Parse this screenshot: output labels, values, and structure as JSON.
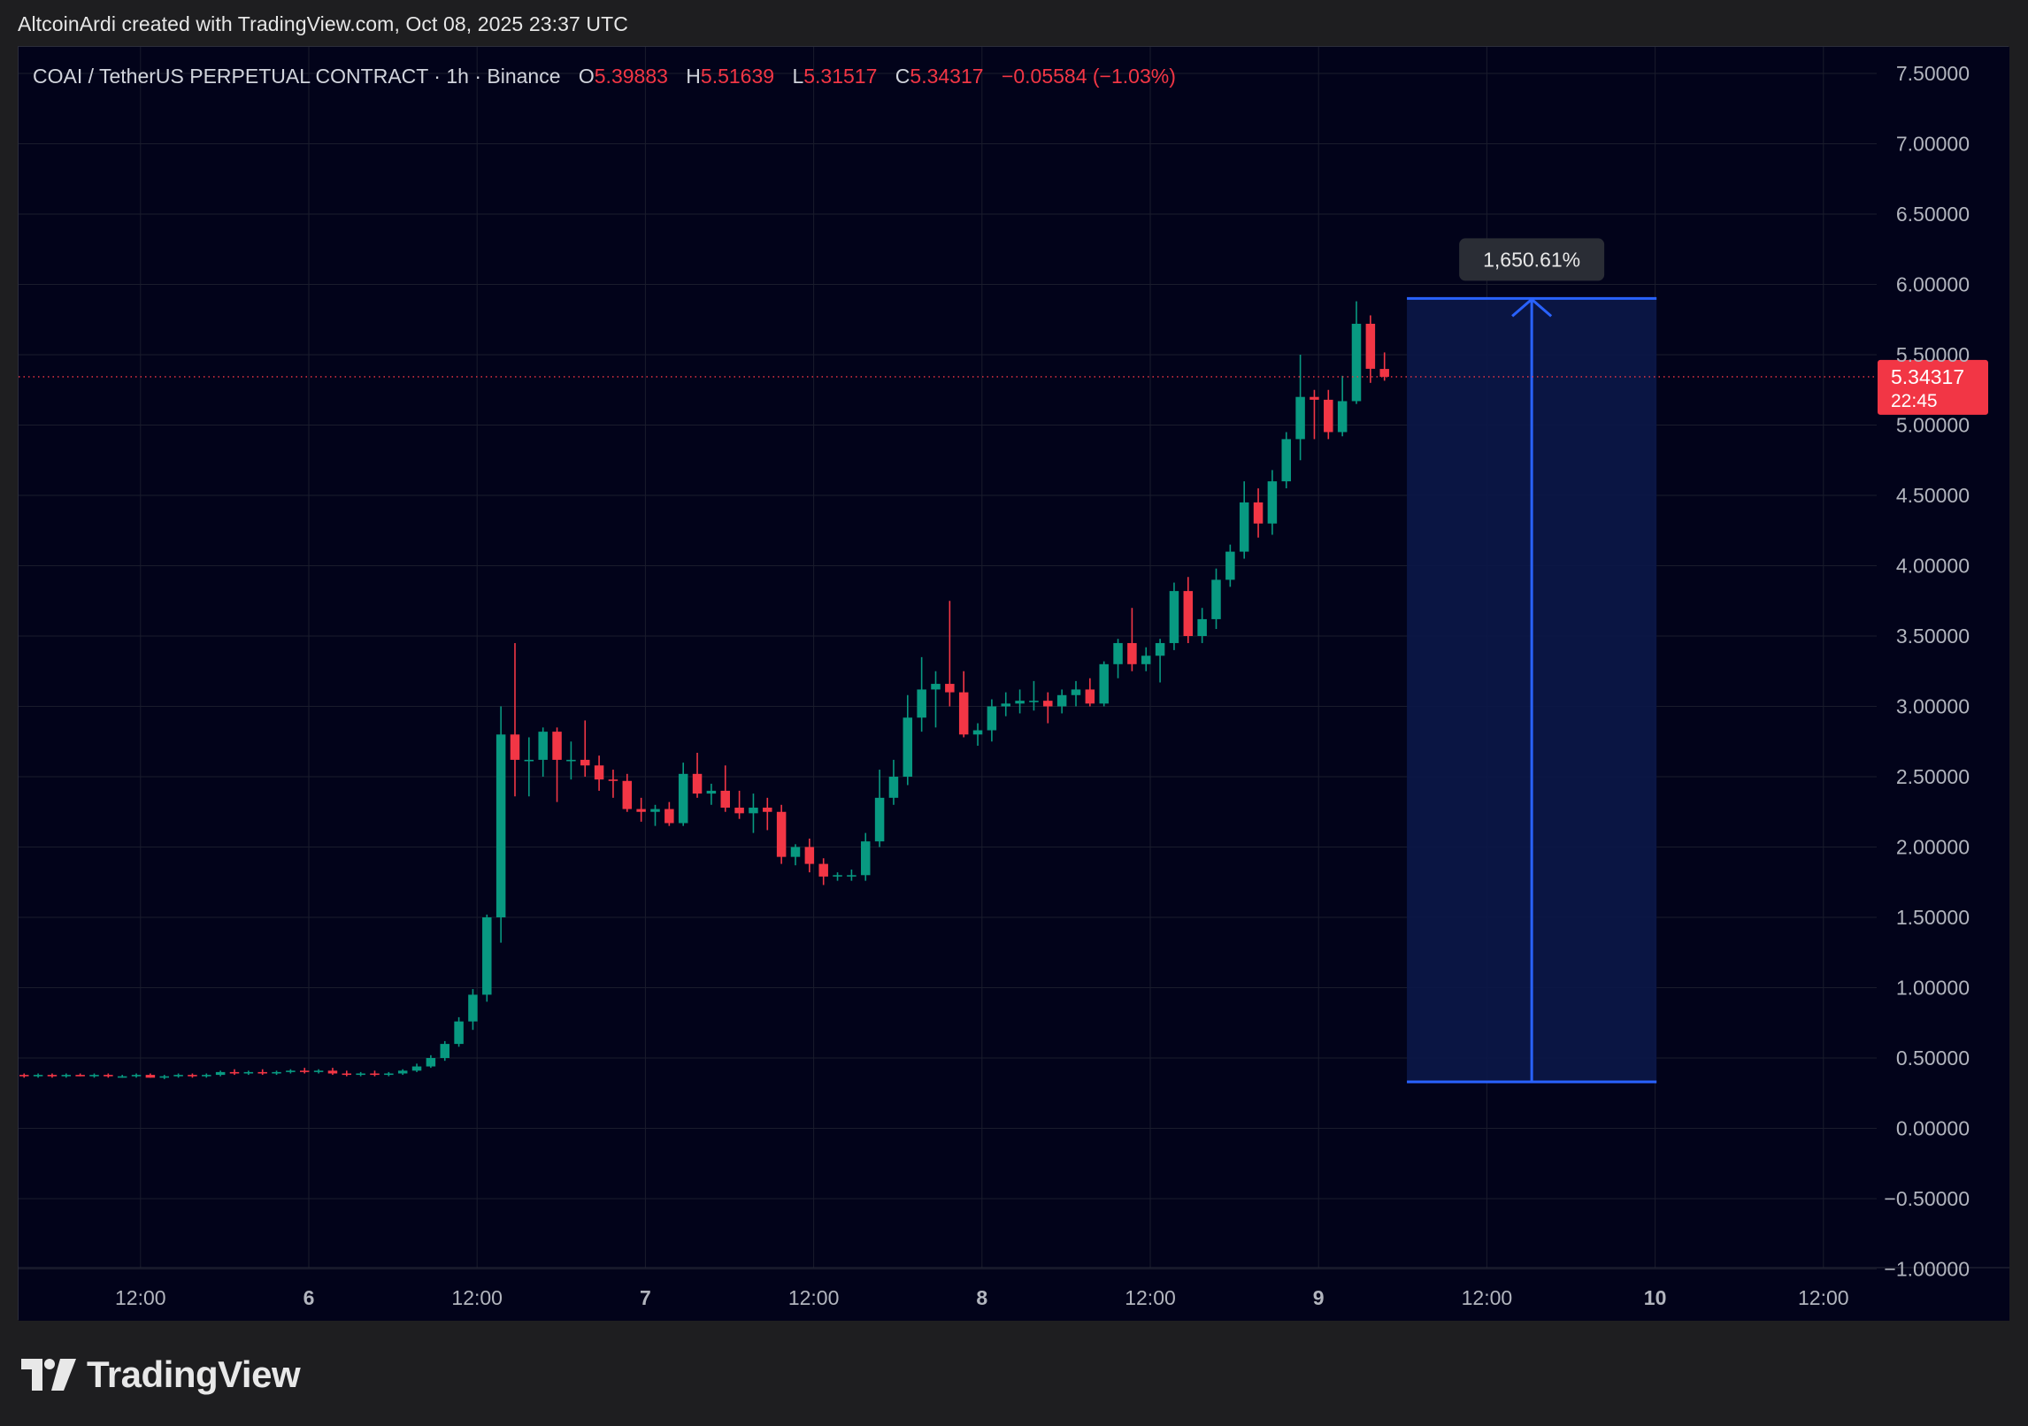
{
  "header": {
    "credit": "AltcoinArdi created with TradingView.com, Oct 08, 2025 23:37 UTC"
  },
  "legend": {
    "symbol": "COAI / TetherUS PERPETUAL CONTRACT · 1h · Binance",
    "o_label": "O",
    "o_value": "5.39883",
    "h_label": "H",
    "h_value": "5.51639",
    "l_label": "L",
    "l_value": "5.31517",
    "c_label": "C",
    "c_value": "5.34317",
    "change": "−0.05584 (−1.03%)"
  },
  "brand": {
    "name": "TradingView",
    "logo": "tradingview-logo-icon"
  },
  "colors": {
    "up": "#089981",
    "down": "#f23645",
    "background": "#02031a",
    "grid": "#1a1c2c",
    "axis_text": "#b2b5be",
    "measure": "#2962ff",
    "measure_fill": "#0b1748",
    "price_tag": "#f23645"
  },
  "chart_data": {
    "type": "candlestick",
    "interval": "1h",
    "yaxis_labels": [
      "7.50000",
      "7.00000",
      "6.50000",
      "6.00000",
      "5.50000",
      "5.00000",
      "4.50000",
      "4.00000",
      "3.50000",
      "3.00000",
      "2.50000",
      "2.00000",
      "1.50000",
      "1.00000",
      "0.50000",
      "0.00000",
      "−0.50000",
      "−1.00000"
    ],
    "ylim": [
      -1.0,
      7.7
    ],
    "xaxis_labels": [
      {
        "label": "12:00",
        "x": -12,
        "bold": false
      },
      {
        "label": "6",
        "x": 0,
        "bold": true
      },
      {
        "label": "12:00",
        "x": 12,
        "bold": false
      },
      {
        "label": "7",
        "x": 24,
        "bold": true
      },
      {
        "label": "12:00",
        "x": 36,
        "bold": false
      },
      {
        "label": "8",
        "x": 48,
        "bold": true
      },
      {
        "label": "12:00",
        "x": 60,
        "bold": false
      },
      {
        "label": "9",
        "x": 72,
        "bold": true
      },
      {
        "label": "12:00",
        "x": 84,
        "bold": false
      },
      {
        "label": "10",
        "x": 96,
        "bold": true
      },
      {
        "label": "12:00",
        "x": 108,
        "bold": false
      }
    ],
    "xlim_hours": [
      -20.6,
      113
    ],
    "start_hour": -20.3,
    "candles": [
      [
        0.38,
        0.39,
        0.36,
        0.37
      ],
      [
        0.37,
        0.39,
        0.36,
        0.38
      ],
      [
        0.38,
        0.39,
        0.36,
        0.37
      ],
      [
        0.37,
        0.39,
        0.36,
        0.38
      ],
      [
        0.38,
        0.39,
        0.37,
        0.37
      ],
      [
        0.37,
        0.39,
        0.36,
        0.38
      ],
      [
        0.38,
        0.39,
        0.36,
        0.37
      ],
      [
        0.37,
        0.38,
        0.36,
        0.37
      ],
      [
        0.37,
        0.39,
        0.36,
        0.38
      ],
      [
        0.38,
        0.39,
        0.36,
        0.36
      ],
      [
        0.36,
        0.38,
        0.35,
        0.37
      ],
      [
        0.37,
        0.39,
        0.36,
        0.38
      ],
      [
        0.38,
        0.39,
        0.36,
        0.37
      ],
      [
        0.37,
        0.39,
        0.36,
        0.38
      ],
      [
        0.38,
        0.41,
        0.37,
        0.4
      ],
      [
        0.4,
        0.42,
        0.38,
        0.39
      ],
      [
        0.39,
        0.41,
        0.38,
        0.4
      ],
      [
        0.4,
        0.42,
        0.38,
        0.39
      ],
      [
        0.39,
        0.41,
        0.38,
        0.4
      ],
      [
        0.4,
        0.42,
        0.39,
        0.41
      ],
      [
        0.41,
        0.43,
        0.39,
        0.4
      ],
      [
        0.4,
        0.42,
        0.39,
        0.41
      ],
      [
        0.41,
        0.43,
        0.38,
        0.39
      ],
      [
        0.39,
        0.41,
        0.37,
        0.38
      ],
      [
        0.38,
        0.4,
        0.37,
        0.39
      ],
      [
        0.39,
        0.41,
        0.37,
        0.38
      ],
      [
        0.38,
        0.4,
        0.37,
        0.39
      ],
      [
        0.39,
        0.42,
        0.38,
        0.41
      ],
      [
        0.41,
        0.46,
        0.4,
        0.44
      ],
      [
        0.44,
        0.52,
        0.43,
        0.5
      ],
      [
        0.5,
        0.62,
        0.48,
        0.6
      ],
      [
        0.6,
        0.79,
        0.58,
        0.76
      ],
      [
        0.76,
        0.99,
        0.7,
        0.95
      ],
      [
        0.95,
        1.52,
        0.9,
        1.5
      ],
      [
        1.5,
        3.0,
        1.32,
        2.8
      ],
      [
        2.8,
        3.45,
        2.36,
        2.62
      ],
      [
        2.62,
        2.78,
        2.36,
        2.62
      ],
      [
        2.62,
        2.85,
        2.5,
        2.82
      ],
      [
        2.82,
        2.85,
        2.32,
        2.62
      ],
      [
        2.62,
        2.75,
        2.48,
        2.62
      ],
      [
        2.62,
        2.9,
        2.5,
        2.58
      ],
      [
        2.58,
        2.65,
        2.4,
        2.48
      ],
      [
        2.48,
        2.55,
        2.35,
        2.47
      ],
      [
        2.47,
        2.52,
        2.25,
        2.27
      ],
      [
        2.27,
        2.35,
        2.18,
        2.25
      ],
      [
        2.25,
        2.3,
        2.15,
        2.27
      ],
      [
        2.27,
        2.32,
        2.15,
        2.17
      ],
      [
        2.17,
        2.6,
        2.15,
        2.52
      ],
      [
        2.52,
        2.67,
        2.35,
        2.38
      ],
      [
        2.38,
        2.45,
        2.3,
        2.4
      ],
      [
        2.4,
        2.58,
        2.25,
        2.28
      ],
      [
        2.28,
        2.4,
        2.2,
        2.24
      ],
      [
        2.24,
        2.38,
        2.1,
        2.28
      ],
      [
        2.28,
        2.35,
        2.12,
        2.25
      ],
      [
        2.25,
        2.3,
        1.88,
        1.93
      ],
      [
        1.93,
        2.02,
        1.87,
        2.0
      ],
      [
        2.0,
        2.06,
        1.82,
        1.88
      ],
      [
        1.88,
        1.92,
        1.73,
        1.79
      ],
      [
        1.79,
        1.82,
        1.76,
        1.8
      ],
      [
        1.8,
        1.84,
        1.76,
        1.8
      ],
      [
        1.8,
        2.1,
        1.76,
        2.04
      ],
      [
        2.04,
        2.55,
        2.0,
        2.35
      ],
      [
        2.35,
        2.62,
        2.3,
        2.5
      ],
      [
        2.5,
        3.08,
        2.44,
        2.92
      ],
      [
        2.92,
        3.35,
        2.82,
        3.12
      ],
      [
        3.12,
        3.25,
        2.85,
        3.16
      ],
      [
        3.16,
        3.75,
        3.0,
        3.1
      ],
      [
        3.1,
        3.25,
        2.78,
        2.8
      ],
      [
        2.8,
        2.88,
        2.72,
        2.83
      ],
      [
        2.83,
        3.05,
        2.75,
        3.0
      ],
      [
        3.0,
        3.1,
        2.93,
        3.02
      ],
      [
        3.02,
        3.12,
        2.95,
        3.04
      ],
      [
        3.04,
        3.18,
        2.97,
        3.04
      ],
      [
        3.04,
        3.1,
        2.88,
        3.0
      ],
      [
        3.0,
        3.12,
        2.95,
        3.08
      ],
      [
        3.08,
        3.18,
        3.0,
        3.12
      ],
      [
        3.12,
        3.2,
        3.0,
        3.02
      ],
      [
        3.02,
        3.32,
        3.0,
        3.3
      ],
      [
        3.3,
        3.48,
        3.2,
        3.45
      ],
      [
        3.45,
        3.7,
        3.25,
        3.3
      ],
      [
        3.3,
        3.42,
        3.25,
        3.36
      ],
      [
        3.36,
        3.48,
        3.17,
        3.45
      ],
      [
        3.45,
        3.88,
        3.4,
        3.82
      ],
      [
        3.82,
        3.92,
        3.45,
        3.5
      ],
      [
        3.5,
        3.7,
        3.45,
        3.62
      ],
      [
        3.62,
        3.98,
        3.55,
        3.9
      ],
      [
        3.9,
        4.15,
        3.85,
        4.1
      ],
      [
        4.1,
        4.6,
        4.05,
        4.45
      ],
      [
        4.45,
        4.55,
        4.2,
        4.3
      ],
      [
        4.3,
        4.68,
        4.22,
        4.6
      ],
      [
        4.6,
        4.95,
        4.55,
        4.9
      ],
      [
        4.9,
        5.5,
        4.75,
        5.2
      ],
      [
        5.2,
        5.25,
        4.9,
        5.18
      ],
      [
        5.18,
        5.25,
        4.9,
        4.95
      ],
      [
        4.95,
        5.35,
        4.92,
        5.17
      ],
      [
        5.17,
        5.88,
        5.15,
        5.72
      ],
      [
        5.72,
        5.78,
        5.3,
        5.4
      ],
      [
        5.39883,
        5.51639,
        5.31517,
        5.34317
      ]
    ],
    "last_price": "5.34317",
    "countdown": "22:45",
    "measure": {
      "label": "1,650.61%",
      "start_x": 78.3,
      "end_x": 96.1,
      "low": 0.33,
      "high": 5.9
    }
  }
}
